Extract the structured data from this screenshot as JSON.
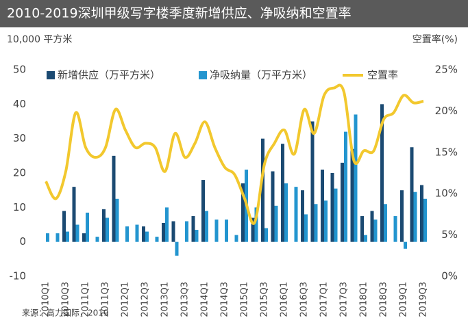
{
  "chart_data": {
    "type": "bar-line",
    "title": "2010-2019深圳甲级写字楼季度新增供应、净吸纳和空置率",
    "y_label": "10,000 平方米",
    "y2_label": "空置率(%)",
    "source": "来源：高力国际，2019",
    "categories": [
      "2010Q1",
      null,
      "2010Q3",
      null,
      "2011Q1",
      null,
      "2011Q3",
      null,
      "2012Q1",
      null,
      "2012Q3",
      null,
      "2013Q1",
      null,
      "2013Q3",
      null,
      "2014Q1",
      null,
      "2014Q3",
      null,
      "2015Q1",
      null,
      "2015Q3",
      null,
      "2016Q1",
      null,
      "2016Q3",
      null,
      "2017Q1",
      null,
      "2017Q3",
      null,
      "2018Q1",
      null,
      "2018Q3",
      null,
      "2019Q1",
      null,
      "2019Q3"
    ],
    "series": [
      {
        "name": "新增供应（万平方米）",
        "type": "bar",
        "color": "#1b4a72",
        "values": [
          0,
          0,
          9,
          16,
          2.5,
          0,
          9.5,
          25,
          0,
          0,
          4.5,
          0,
          5.5,
          6,
          0,
          7.5,
          18,
          0,
          0,
          0,
          17,
          7,
          30,
          20.5,
          28.5,
          0,
          15,
          35,
          21,
          20,
          23,
          27,
          7.5,
          9,
          40,
          0,
          15,
          27.5,
          16.5
        ]
      },
      {
        "name": "净吸纳量（万平方米）",
        "type": "bar",
        "color": "#2395cf",
        "values": [
          2.5,
          2.5,
          3,
          5,
          8.5,
          1.5,
          7,
          12.5,
          4.5,
          5,
          3,
          1.5,
          10,
          -4,
          6,
          3.5,
          9,
          6.5,
          6.5,
          2,
          21,
          10,
          4,
          10.5,
          17,
          16,
          8,
          11,
          12,
          15.5,
          32,
          37,
          2,
          6.5,
          11,
          7.5,
          -2,
          14.5,
          12.5
        ]
      },
      {
        "name": "空置率",
        "type": "line",
        "axis": "y2",
        "color": "#f2c82e",
        "values": [
          11.5,
          9.4,
          12.7,
          19.8,
          15.6,
          14.4,
          15.6,
          20.2,
          17.7,
          15.6,
          16.1,
          15.6,
          12.7,
          17.3,
          14.4,
          16.1,
          18.7,
          15.6,
          13.2,
          12.3,
          9.4,
          6.5,
          13.6,
          16.1,
          17.7,
          14.8,
          20.2,
          17.3,
          21.9,
          22.8,
          22.3,
          14.0,
          15.2,
          15.2,
          19.0,
          19.8,
          21.9,
          21.0,
          21.2
        ]
      }
    ],
    "ylim": [
      -10,
      50
    ],
    "yticks": [
      -10,
      0,
      10,
      20,
      30,
      40,
      50
    ],
    "y2lim": [
      0,
      25
    ],
    "y2ticks": [
      {
        "value": 0,
        "label": "0%"
      },
      {
        "value": 5,
        "label": "5%"
      },
      {
        "value": 10,
        "label": "10%"
      },
      {
        "value": 15,
        "label": "15%"
      },
      {
        "value": 20,
        "label": "20%"
      },
      {
        "value": 25,
        "label": "25%"
      }
    ],
    "grid": false,
    "legend": "top"
  }
}
